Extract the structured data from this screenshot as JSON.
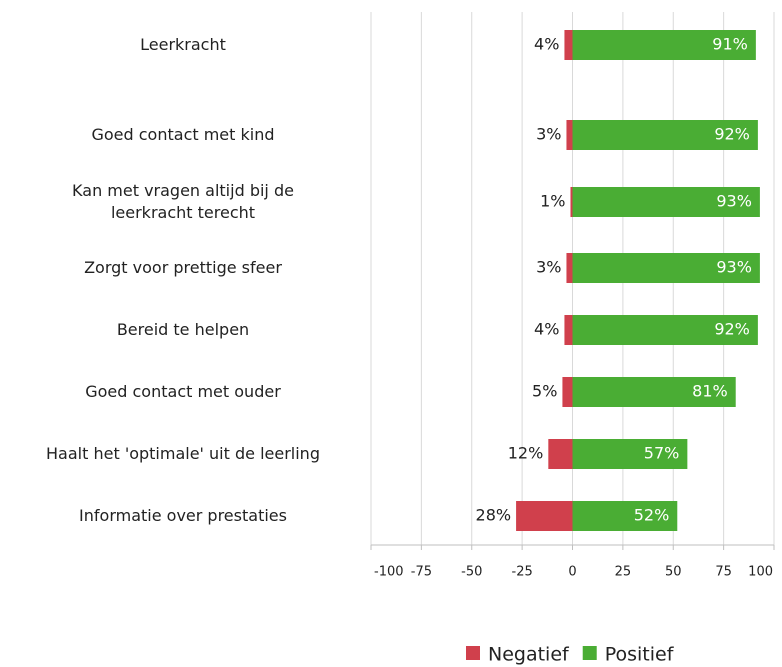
{
  "chart_data": {
    "type": "diverging_bar",
    "categories": [
      "Leerkracht",
      "Goed contact met kind",
      "Kan met vragen altijd bij de leerkracht terecht",
      "Zorgt voor prettige sfeer",
      "Bereid te helpen",
      "Goed contact met ouder",
      "Haalt het 'optimale' uit de leerling",
      "Informatie over prestaties"
    ],
    "series": [
      {
        "name": "Negatief",
        "color": "#d0404c",
        "values": [
          -4,
          -3,
          -1,
          -3,
          -4,
          -5,
          -12,
          -28
        ],
        "value_labels": [
          "4%",
          "3%",
          "1%",
          "3%",
          "4%",
          "5%",
          "12%",
          "28%"
        ]
      },
      {
        "name": "Positief",
        "color": "#4aad34",
        "values": [
          91,
          92,
          93,
          93,
          92,
          81,
          57,
          52
        ],
        "value_labels": [
          "91%",
          "92%",
          "93%",
          "93%",
          "92%",
          "81%",
          "57%",
          "52%"
        ]
      }
    ],
    "xlim": [
      -100,
      100
    ],
    "xticks": [
      -100,
      -75,
      -50,
      -25,
      0,
      25,
      50,
      75,
      100
    ],
    "grid": true,
    "legend": "bottom"
  }
}
